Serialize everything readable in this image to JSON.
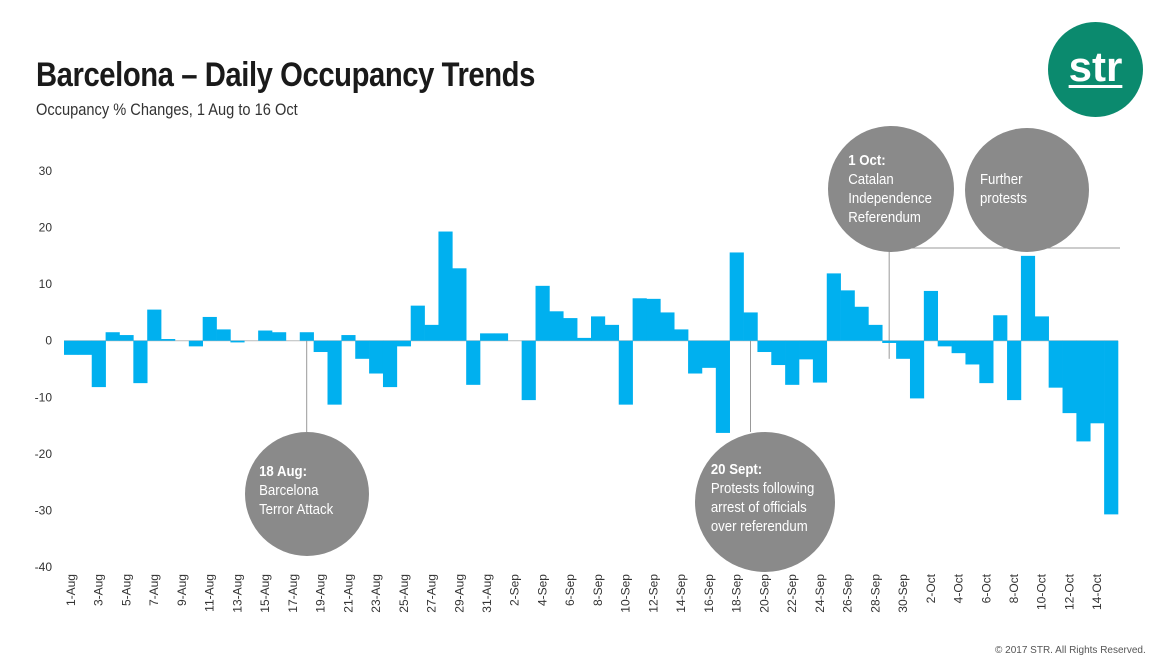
{
  "title": "Barcelona – Daily Occupancy Trends",
  "subtitle": "Occupancy % Changes, 1 Aug to 16 Oct",
  "logo_text": "str",
  "copyright": "© 2017 STR. All Rights Reserved.",
  "colors": {
    "bar": "#00b0ef",
    "annotation": "#8a8a8a",
    "logo": "#0b8a6e"
  },
  "annotations": [
    {
      "heading": "18 Aug:",
      "lines": [
        "Barcelona",
        "Terror Attack"
      ]
    },
    {
      "heading": "20 Sept:",
      "lines": [
        "Protests following",
        "arrest of officials",
        "over referendum"
      ]
    },
    {
      "heading": "1 Oct:",
      "lines": [
        "Catalan",
        "Independence",
        "Referendum"
      ]
    },
    {
      "heading": "",
      "lines": [
        "Further",
        "protests"
      ]
    }
  ],
  "chart_data": {
    "type": "bar",
    "ylim": [
      -40,
      30
    ],
    "yticks": [
      30,
      20,
      10,
      0,
      -10,
      -20,
      -30,
      -40
    ],
    "grid": false,
    "categories": [
      "1-Aug",
      "2-Aug",
      "3-Aug",
      "4-Aug",
      "5-Aug",
      "6-Aug",
      "7-Aug",
      "8-Aug",
      "9-Aug",
      "10-Aug",
      "11-Aug",
      "12-Aug",
      "13-Aug",
      "14-Aug",
      "15-Aug",
      "16-Aug",
      "17-Aug",
      "18-Aug",
      "19-Aug",
      "20-Aug",
      "21-Aug",
      "22-Aug",
      "23-Aug",
      "24-Aug",
      "25-Aug",
      "26-Aug",
      "27-Aug",
      "28-Aug",
      "29-Aug",
      "30-Aug",
      "31-Aug",
      "1-Sep",
      "2-Sep",
      "3-Sep",
      "4-Sep",
      "5-Sep",
      "6-Sep",
      "7-Sep",
      "8-Sep",
      "9-Sep",
      "10-Sep",
      "11-Sep",
      "12-Sep",
      "13-Sep",
      "14-Sep",
      "15-Sep",
      "16-Sep",
      "17-Sep",
      "18-Sep",
      "19-Sep",
      "20-Sep",
      "21-Sep",
      "22-Sep",
      "23-Sep",
      "24-Sep",
      "25-Sep",
      "26-Sep",
      "27-Sep",
      "28-Sep",
      "29-Sep",
      "30-Sep",
      "1-Oct",
      "2-Oct",
      "3-Oct",
      "4-Oct",
      "5-Oct",
      "6-Oct",
      "7-Oct",
      "8-Oct",
      "9-Oct",
      "10-Oct",
      "11-Oct",
      "12-Oct",
      "13-Oct",
      "14-Oct",
      "15-Oct"
    ],
    "tick_labels": [
      "1-Aug",
      "3-Aug",
      "5-Aug",
      "7-Aug",
      "9-Aug",
      "11-Aug",
      "13-Aug",
      "15-Aug",
      "17-Aug",
      "19-Aug",
      "21-Aug",
      "23-Aug",
      "25-Aug",
      "27-Aug",
      "29-Aug",
      "31-Aug",
      "2-Sep",
      "4-Sep",
      "6-Sep",
      "8-Sep",
      "10-Sep",
      "12-Sep",
      "14-Sep",
      "16-Sep",
      "18-Sep",
      "20-Sep",
      "22-Sep",
      "24-Sep",
      "26-Sep",
      "28-Sep",
      "30-Sep",
      "2-Oct",
      "4-Oct",
      "6-Oct",
      "8-Oct",
      "10-Oct",
      "12-Oct",
      "14-Oct"
    ],
    "values": [
      -2.5,
      -2.5,
      -8.2,
      1.5,
      1.0,
      -7.5,
      5.5,
      0.3,
      0.0,
      -1.0,
      4.2,
      2.0,
      -0.3,
      0.0,
      1.8,
      1.5,
      0.0,
      1.5,
      -2.0,
      -11.3,
      1.0,
      -3.2,
      -5.8,
      -8.2,
      -1.0,
      6.2,
      2.8,
      19.3,
      12.8,
      -7.8,
      1.3,
      1.3,
      0.0,
      -10.5,
      9.7,
      5.2,
      4.0,
      0.5,
      4.3,
      2.8,
      -11.3,
      7.5,
      7.4,
      5.0,
      2.0,
      -5.8,
      -4.8,
      -16.3,
      15.6,
      5.0,
      -2.0,
      -4.3,
      -7.8,
      -3.3,
      -7.4,
      11.9,
      8.9,
      6.0,
      2.8,
      -0.4,
      -3.2,
      -10.2,
      8.8,
      -1.0,
      -2.2,
      -4.2,
      -7.5,
      4.5,
      -10.5,
      15.0,
      4.3,
      -8.3,
      -12.8,
      -17.8,
      -14.6,
      -30.7
    ]
  }
}
